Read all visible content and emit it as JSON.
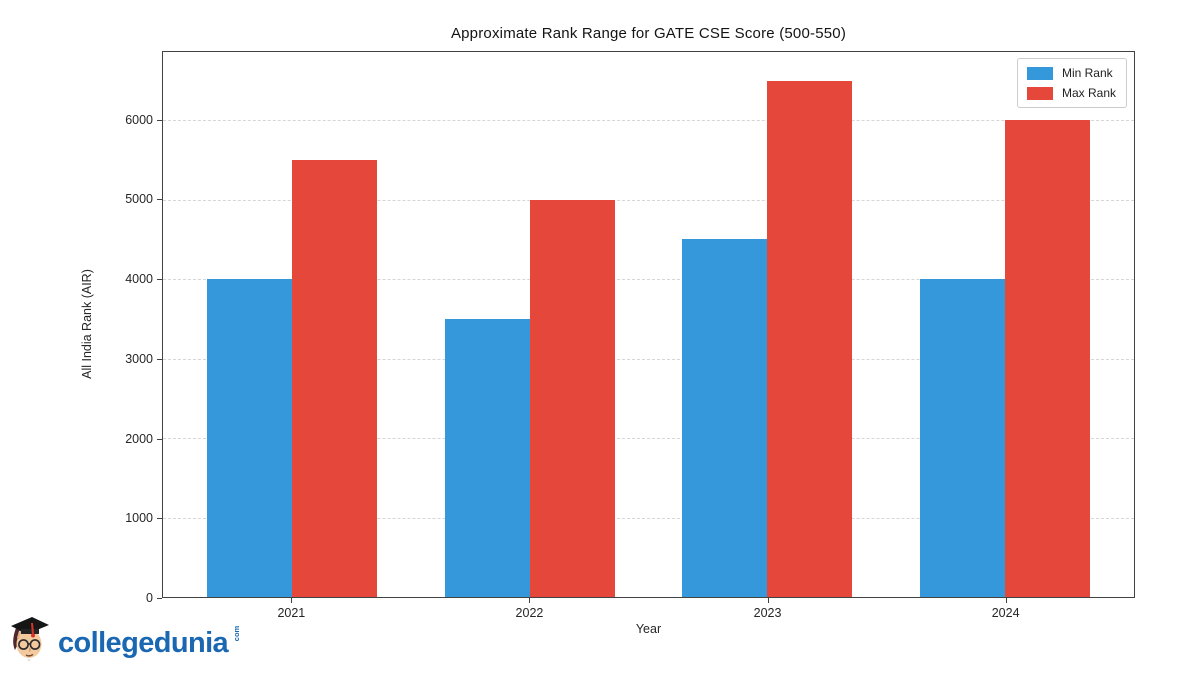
{
  "chart_data": {
    "type": "bar",
    "title": "Approximate Rank Range for GATE CSE Score (500-550)",
    "xlabel": "Year",
    "ylabel": "All India Rank (AIR)",
    "categories": [
      "2021",
      "2022",
      "2023",
      "2024"
    ],
    "series": [
      {
        "name": "Min Rank",
        "color": "#3498db",
        "values": [
          4000,
          3500,
          4500,
          4000
        ]
      },
      {
        "name": "Max Rank",
        "color": "#e5473a",
        "values": [
          5500,
          5000,
          6500,
          6000
        ]
      }
    ],
    "ylim": [
      0,
      6860
    ],
    "yticks": [
      0,
      1000,
      2000,
      3000,
      4000,
      5000,
      6000
    ],
    "grid": "horizontal-dashed",
    "legend_position": "top-right"
  },
  "logo": {
    "text": "collegedunia",
    "suffix": "com",
    "color": "#1a67b2"
  }
}
